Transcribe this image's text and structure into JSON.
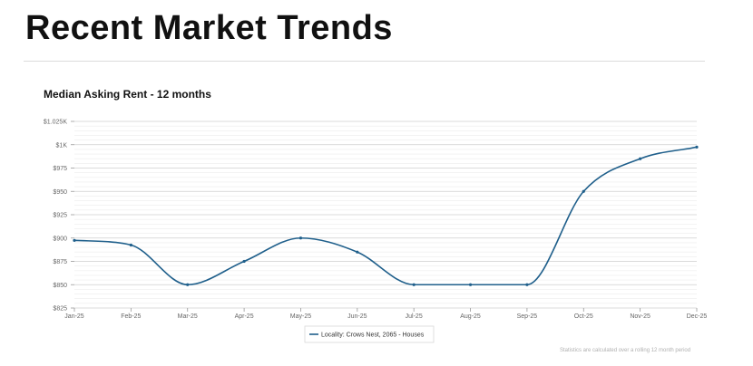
{
  "page": {
    "title": "Recent Market Trends",
    "footnote": "Statistics are calculated over a rolling 12 month period"
  },
  "chart_data": {
    "type": "line",
    "title": "Median Asking Rent - 12 months",
    "xlabel": "",
    "ylabel": "",
    "categories": [
      "Jan-25",
      "Feb-25",
      "Mar-25",
      "Apr-25",
      "May-25",
      "Jun-25",
      "Jul-25",
      "Aug-25",
      "Sep-25",
      "Oct-25",
      "Nov-25",
      "Dec-25"
    ],
    "series": [
      {
        "name": "Locality: Crows Nest, 2065 - Houses",
        "values": [
          897.5,
          892.5,
          850,
          875,
          900,
          885,
          850,
          850,
          850,
          950,
          985,
          997.5
        ],
        "color": "#1f5f8b"
      }
    ],
    "y_ticks": [
      825,
      850,
      875,
      900,
      925,
      950,
      975,
      1000,
      1025
    ],
    "y_tick_labels": [
      "$825",
      "$850",
      "$875",
      "$900",
      "$925",
      "$950",
      "$975",
      "$1K",
      "$1.025K"
    ],
    "ylim": [
      825,
      1025
    ],
    "grid": true,
    "legend": "bottom-center",
    "colors": {
      "grid_major": "#cfcfcf",
      "grid_minor": "#ececec",
      "axis_text": "#666666"
    }
  }
}
